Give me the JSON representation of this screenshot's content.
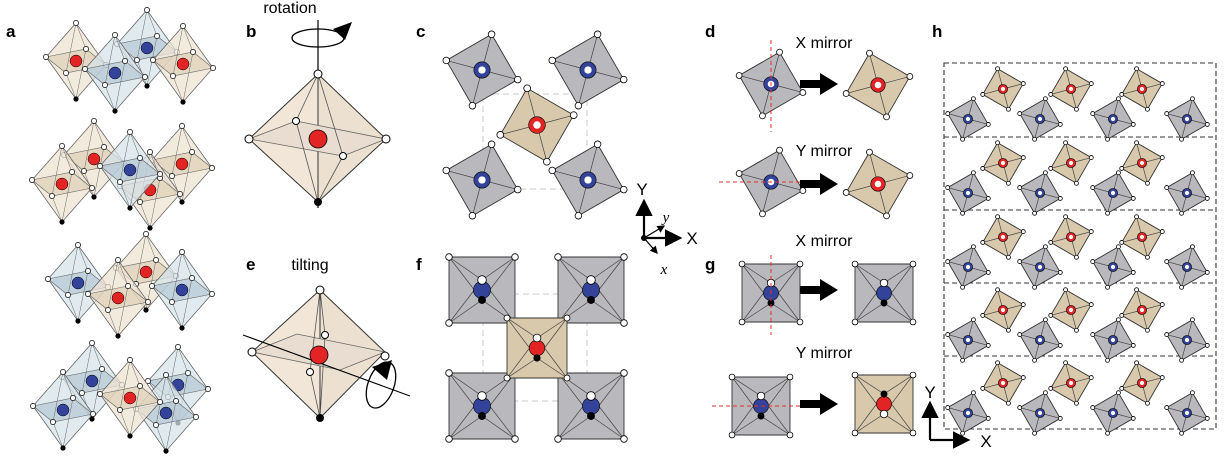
{
  "panels": {
    "a": "a",
    "b": "b",
    "c": "c",
    "d": "d",
    "e": "e",
    "f": "f",
    "g": "g",
    "h": "h"
  },
  "labels": {
    "rotation": "rotation",
    "tilting": "tilting",
    "x_mirror": "X mirror",
    "y_mirror": "Y mirror"
  },
  "axes": {
    "X": "X",
    "Y": "Y",
    "x": "x",
    "y": "y"
  },
  "colors": {
    "red_atom": "#e32424",
    "blue_atom": "#34439a",
    "gray_octa": "#b9b9bd",
    "tan_octa": "#d8c9ad",
    "light_tan": "#efe3d3",
    "light_blue": "#d6e3ea",
    "guide_line": "#c8c8c8",
    "mirror_line": "#e03030"
  }
}
